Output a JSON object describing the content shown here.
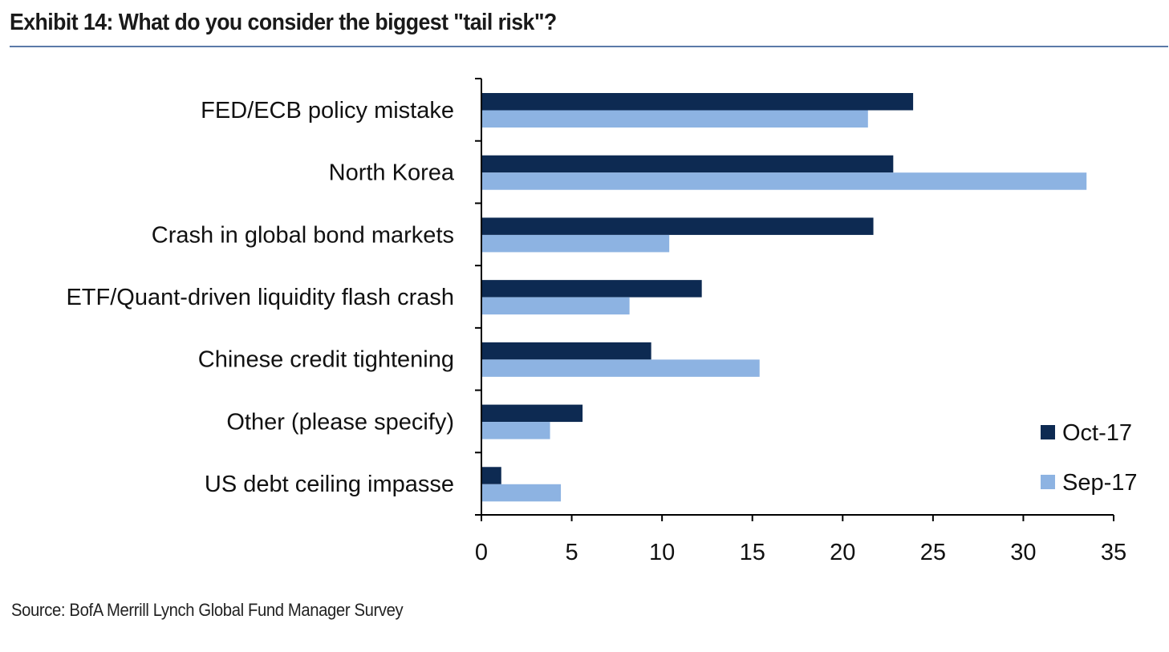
{
  "title": "Exhibit 14: What do you consider the biggest \"tail risk\"?",
  "source": "Source: BofA Merrill Lynch Global Fund Manager Survey",
  "colors": {
    "oct": "#0d2a52",
    "sep": "#8db3e2",
    "rule": "#5b7aa8"
  },
  "chart_data": {
    "type": "bar",
    "orientation": "horizontal",
    "title": "Exhibit 14: What do you consider the biggest \"tail risk\"?",
    "xlabel": "",
    "ylabel": "",
    "categories": [
      "FED/ECB policy mistake",
      "North Korea",
      "Crash in global bond markets",
      "ETF/Quant-driven liquidity flash crash",
      "Chinese credit tightening",
      "Other (please specify)",
      "US debt ceiling impasse"
    ],
    "series": [
      {
        "name": "Oct-17",
        "values": [
          23.9,
          22.8,
          21.7,
          12.2,
          9.4,
          5.6,
          1.1
        ]
      },
      {
        "name": "Sep-17",
        "values": [
          21.4,
          33.5,
          10.4,
          8.2,
          15.4,
          3.8,
          4.4
        ]
      }
    ],
    "xlim": [
      0,
      35
    ],
    "xticks": [
      "0",
      "5",
      "10",
      "15",
      "20",
      "25",
      "30",
      "35"
    ],
    "grid": false,
    "legend_position": "bottom-right"
  }
}
